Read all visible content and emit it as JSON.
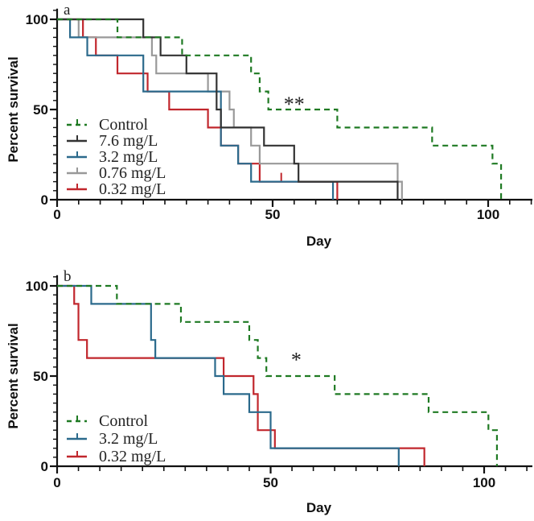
{
  "chart_data": [
    {
      "type": "line",
      "subtype": "kaplan-meier step",
      "panel_label": "a",
      "xlabel": "Day",
      "ylabel": "Percent survival",
      "xlim": [
        0,
        110
      ],
      "ylim": [
        0,
        105
      ],
      "xticks": [
        0,
        50,
        100
      ],
      "yticks": [
        0,
        50,
        100
      ],
      "annotation": "**",
      "annotation_at": [
        55,
        50
      ],
      "series": [
        {
          "name": "Control",
          "color": "#1f7a23",
          "dashed": true,
          "steps": [
            [
              14,
              90
            ],
            [
              29,
              80
            ],
            [
              45,
              70
            ],
            [
              47,
              60
            ],
            [
              49,
              50
            ],
            [
              65,
              40
            ],
            [
              87,
              30
            ],
            [
              101,
              20
            ],
            [
              103,
              0
            ]
          ],
          "censored": []
        },
        {
          "name": "7.6 mg/L",
          "color": "#333333",
          "dashed": false,
          "steps": [
            [
              20,
              90
            ],
            [
              24,
              80
            ],
            [
              30,
              70
            ],
            [
              37,
              50
            ],
            [
              38,
              40
            ],
            [
              48,
              30
            ],
            [
              55,
              20
            ],
            [
              56,
              10
            ],
            [
              79,
              0
            ]
          ],
          "censored": []
        },
        {
          "name": "3.2 mg/L",
          "color": "#2b6a8c",
          "dashed": false,
          "steps": [
            [
              3,
              90
            ],
            [
              7,
              80
            ],
            [
              20,
              60
            ],
            [
              38,
              30
            ],
            [
              42,
              20
            ],
            [
              45,
              10
            ],
            [
              64,
              0
            ]
          ],
          "censored": []
        },
        {
          "name": "0.76 mg/L",
          "color": "#999999",
          "dashed": false,
          "steps": [
            [
              5,
              90
            ],
            [
              22,
              80
            ],
            [
              23,
              70
            ],
            [
              35,
              60
            ],
            [
              40,
              50
            ],
            [
              41,
              40
            ],
            [
              45,
              30
            ],
            [
              47,
              20
            ],
            [
              79,
              10
            ],
            [
              80,
              0
            ]
          ],
          "censored": []
        },
        {
          "name": "0.32 mg/L",
          "color": "#c1272d",
          "dashed": false,
          "steps": [
            [
              6,
              90
            ],
            [
              9,
              80
            ],
            [
              14,
              70
            ],
            [
              21,
              60
            ],
            [
              26,
              50
            ],
            [
              35,
              40
            ],
            [
              38,
              30
            ],
            [
              42,
              20
            ],
            [
              47,
              10
            ],
            [
              65,
              0
            ]
          ],
          "censored": [
            [
              52,
              10
            ]
          ]
        }
      ]
    },
    {
      "type": "line",
      "subtype": "kaplan-meier step",
      "panel_label": "b",
      "xlabel": "Day",
      "ylabel": "Percent survival",
      "xlim": [
        0,
        110
      ],
      "ylim": [
        0,
        105
      ],
      "xticks": [
        0,
        50,
        100
      ],
      "yticks": [
        0,
        50,
        100
      ],
      "annotation": "*",
      "annotation_at": [
        56,
        56
      ],
      "series": [
        {
          "name": "Control",
          "color": "#1f7a23",
          "dashed": true,
          "steps": [
            [
              14,
              90
            ],
            [
              29,
              80
            ],
            [
              45,
              70
            ],
            [
              47,
              60
            ],
            [
              49,
              50
            ],
            [
              65,
              40
            ],
            [
              87,
              30
            ],
            [
              101,
              20
            ],
            [
              103,
              0
            ]
          ],
          "censored": []
        },
        {
          "name": "3.2 mg/L",
          "color": "#2b6a8c",
          "dashed": false,
          "steps": [
            [
              8,
              90
            ],
            [
              22,
              70
            ],
            [
              23,
              60
            ],
            [
              37,
              50
            ],
            [
              39,
              40
            ],
            [
              45,
              30
            ],
            [
              50,
              10
            ],
            [
              80,
              0
            ]
          ],
          "censored": []
        },
        {
          "name": "0.32 mg/L",
          "color": "#c1272d",
          "dashed": false,
          "steps": [
            [
              4,
              90
            ],
            [
              5,
              70
            ],
            [
              7,
              60
            ],
            [
              39,
              50
            ],
            [
              46,
              40
            ],
            [
              47,
              20
            ],
            [
              51,
              10
            ],
            [
              86,
              0
            ]
          ],
          "censored": []
        }
      ]
    }
  ]
}
